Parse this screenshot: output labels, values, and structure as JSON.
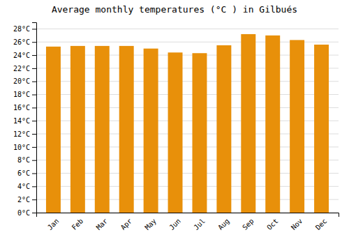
{
  "chart_data": {
    "type": "bar",
    "title": "Average monthly temperatures (°C ) in Gilbués",
    "categories": [
      "Jan",
      "Feb",
      "Mar",
      "Apr",
      "May",
      "Jun",
      "Jul",
      "Aug",
      "Sep",
      "Oct",
      "Nov",
      "Dec"
    ],
    "values": [
      25.3,
      25.4,
      25.4,
      25.4,
      25.0,
      24.4,
      24.3,
      25.5,
      27.2,
      27.0,
      26.3,
      25.6
    ],
    "color": "#E8900A",
    "ylim": [
      0,
      29
    ],
    "yticks": [
      {
        "value": 0,
        "label": "0°C"
      },
      {
        "value": 2,
        "label": "2°C"
      },
      {
        "value": 4,
        "label": "4°C"
      },
      {
        "value": 6,
        "label": "6°C"
      },
      {
        "value": 8,
        "label": "8°C"
      },
      {
        "value": 10,
        "label": "10°C"
      },
      {
        "value": 12,
        "label": "12°C"
      },
      {
        "value": 14,
        "label": "14°C"
      },
      {
        "value": 16,
        "label": "16°C"
      },
      {
        "value": 18,
        "label": "18°C"
      },
      {
        "value": 20,
        "label": "20°C"
      },
      {
        "value": 22,
        "label": "22°C"
      },
      {
        "value": 24,
        "label": "24°C"
      },
      {
        "value": 26,
        "label": "26°C"
      },
      {
        "value": 28,
        "label": "28°C"
      }
    ],
    "grid": true
  }
}
